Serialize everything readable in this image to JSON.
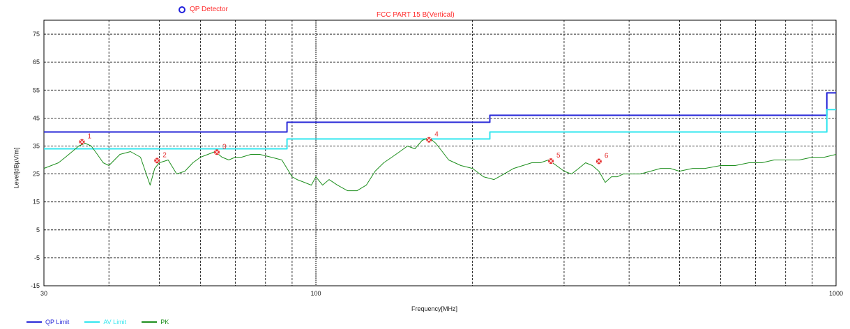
{
  "detector_legend": {
    "label": "QP Detector",
    "marker_color": "#2222dd"
  },
  "chart_data": {
    "type": "line",
    "title": "FCC PART 15 B(Vertical)",
    "xlabel": "Frequency[MHz]",
    "ylabel": "Level[dBµV/m]",
    "x_scale": "log",
    "xlim": [
      30,
      1000
    ],
    "ylim": [
      -15,
      80
    ],
    "x_tick_labels": [
      "30",
      "100",
      "1000"
    ],
    "y_ticks": [
      -15,
      -5,
      5,
      15,
      25,
      35,
      45,
      55,
      65,
      75
    ],
    "grid": true,
    "legend_position": "bottom-left",
    "series": [
      {
        "name": "QP Limit",
        "color": "#2a2ad8",
        "step": true,
        "x": [
          30,
          88,
          88,
          216,
          216,
          960,
          960,
          1000
        ],
        "values": [
          40,
          40,
          43.5,
          43.5,
          46,
          46,
          54,
          54
        ]
      },
      {
        "name": "AV Limit",
        "color": "#33e6ef",
        "step": true,
        "x": [
          30,
          88,
          88,
          216,
          216,
          960,
          960,
          1000
        ],
        "values": [
          34,
          34,
          37.5,
          37.5,
          40,
          40,
          48,
          48
        ]
      },
      {
        "name": "PK",
        "color": "#1e8f1e",
        "x": [
          30,
          31,
          32,
          33,
          34,
          35,
          36,
          37,
          38,
          39,
          40,
          42,
          44,
          46,
          47,
          48,
          49,
          50,
          52,
          54,
          56,
          58,
          60,
          62,
          64,
          66,
          68,
          70,
          72,
          75,
          78,
          82,
          86,
          88,
          90,
          92,
          95,
          98,
          100,
          103,
          106,
          110,
          115,
          120,
          125,
          130,
          135,
          140,
          145,
          150,
          155,
          160,
          165,
          170,
          175,
          180,
          190,
          200,
          210,
          220,
          230,
          240,
          250,
          260,
          270,
          280,
          290,
          300,
          310,
          320,
          330,
          340,
          350,
          360,
          370,
          380,
          390,
          400,
          420,
          440,
          460,
          480,
          500,
          530,
          560,
          600,
          640,
          680,
          720,
          760,
          800,
          850,
          900,
          950,
          1000
        ],
        "values": [
          27,
          28,
          29,
          31,
          33,
          35,
          36,
          35,
          32,
          29,
          28,
          32,
          33,
          31,
          26,
          21,
          27,
          29,
          30,
          25,
          26,
          29,
          31,
          32,
          33,
          31,
          30,
          31,
          31,
          32,
          32,
          31,
          30,
          27,
          24,
          23,
          22,
          21,
          24,
          21,
          23,
          21,
          19,
          19,
          21,
          26,
          29,
          31,
          33,
          35,
          34,
          37,
          38,
          36,
          33,
          30,
          28,
          27,
          24,
          23,
          25,
          27,
          28,
          29,
          29,
          30,
          28,
          26,
          25,
          27,
          29,
          28,
          26,
          22,
          24,
          24,
          25,
          25,
          25,
          26,
          27,
          27,
          26,
          27,
          27,
          28,
          28,
          29,
          29,
          30,
          30,
          30,
          31,
          31,
          32
        ]
      }
    ],
    "markers": [
      {
        "label": "1",
        "x": 35.5,
        "y": 36.5
      },
      {
        "label": "2",
        "x": 49.5,
        "y": 29.8
      },
      {
        "label": "3",
        "x": 64.5,
        "y": 32.8
      },
      {
        "label": "4",
        "x": 165,
        "y": 37.2
      },
      {
        "label": "5",
        "x": 283,
        "y": 29.6
      },
      {
        "label": "6",
        "x": 350,
        "y": 29.5
      }
    ],
    "marker_color": "#e53030"
  }
}
